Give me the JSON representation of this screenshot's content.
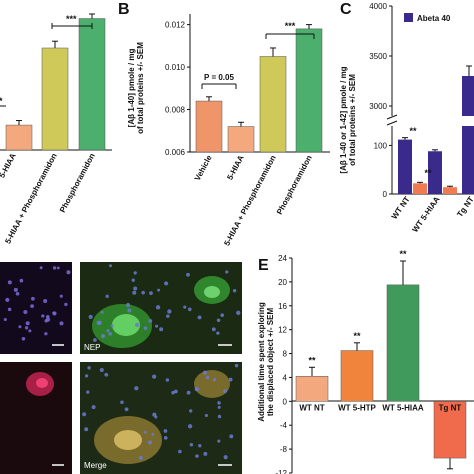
{
  "panels": {
    "A": {
      "categories": [
        "5-HIAA",
        "5-HIAA + Phosphoramidon",
        "Phosphoramidon"
      ],
      "sig_labels": [
        "*",
        "***"
      ]
    },
    "B": {
      "label": "B",
      "ylabel_line1": "[Aβ 1-40] pmole / mg",
      "ylabel_line2": "of total proteins +/- SEM",
      "annotation_p": "P = 0.05",
      "sig_label": "***"
    },
    "C": {
      "label": "C",
      "ylabel_line1": "[Aβ 1-40 or 1-42] pmole / mg",
      "ylabel_line2": "of total proteins +/- SEM",
      "legend": "Abeta 40",
      "sig_labels": [
        "**",
        "**"
      ]
    },
    "D": {
      "nep_label": "NEP",
      "merge_label": "Merge"
    },
    "E": {
      "label": "E",
      "ylabel_line1": "Additional time spent exploring",
      "ylabel_line2": "the displaced object +/- SEM",
      "sig_labels": [
        "**",
        "**",
        "**"
      ]
    }
  },
  "colors": {
    "vehicle": "#f0956a",
    "hiaa": "#f4a87e",
    "hiaa_phos": "#cfc95a",
    "phos": "#4caf6e",
    "abeta40": "#3a2a8c",
    "abeta42": "#f07a52",
    "wt5htp": "#f0843c",
    "wt5hiaa": "#3f9a5c",
    "tgnt": "#f06a4c"
  },
  "chart_data": [
    {
      "panel": "A",
      "type": "bar",
      "categories": [
        "5-HIAA",
        "5-HIAA + Phosphoramidon",
        "Phosphoramidon"
      ],
      "values": [
        0.0071,
        0.0105,
        0.0118
      ],
      "errors": [
        0.0002,
        0.0003,
        0.0002
      ],
      "ylim": [
        0.006,
        0.012
      ]
    },
    {
      "panel": "B",
      "type": "bar",
      "title": "",
      "ylabel": "[Aβ 1-40] pmole / mg of total proteins +/- SEM",
      "categories": [
        "Vehicle",
        "5-HIAA",
        "5-HIAA + Phosphoramidon",
        "Phosphoramidon"
      ],
      "values": [
        0.0084,
        0.0072,
        0.0105,
        0.0118
      ],
      "errors": [
        0.0002,
        0.0002,
        0.0004,
        0.0002
      ],
      "yticks": [
        "0.006",
        "0.008",
        "0.010",
        "0.012"
      ],
      "ylim": [
        0.006,
        0.0125
      ]
    },
    {
      "panel": "C",
      "type": "bar",
      "ylabel": "[Aβ 1-40 or 1-42] pmole / mg of total proteins +/- SEM",
      "categories": [
        "WT NT",
        "WT 5-HIAA",
        "Tg NT"
      ],
      "series": [
        {
          "name": "Abeta 40",
          "values": [
            112,
            88,
            3300
          ],
          "errors": [
            4,
            3,
            100
          ]
        },
        {
          "values": [
            22,
            14,
            null
          ],
          "errors": [
            2,
            2,
            null
          ]
        }
      ],
      "yticks_lower": [
        "0",
        "100"
      ],
      "yticks_upper": [
        "3000",
        "3500",
        "4000"
      ],
      "axis_break": true
    },
    {
      "panel": "E",
      "type": "bar",
      "ylabel": "Additional time spent exploring the displaced object +/- SEM",
      "categories": [
        "WT NT",
        "WT 5-HTP",
        "WT 5-HIAA",
        "Tg NT"
      ],
      "values": [
        4.2,
        8.5,
        19.5,
        -9.5
      ],
      "errors": [
        1.5,
        1.3,
        4.0,
        1.8
      ],
      "yticks": [
        "-12",
        "-8",
        "-4",
        "0",
        "4",
        "8",
        "12",
        "16",
        "20",
        "24"
      ],
      "ylim": [
        -12,
        24
      ]
    }
  ]
}
